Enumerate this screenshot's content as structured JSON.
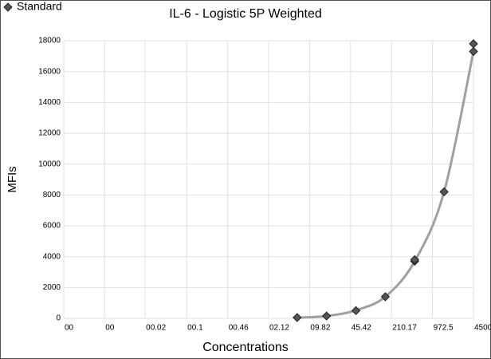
{
  "chart_data": {
    "type": "scatter",
    "title": "IL-6 - Logistic 5P Weighted",
    "x_label": "Concentrations",
    "y_label": "MFIs",
    "xscale": "log",
    "grid": true,
    "legend": "top-left",
    "xlim": [
      0.001,
      4500
    ],
    "ylim": [
      0,
      18000
    ],
    "xticks": [
      {
        "value": 0.001,
        "label": "00"
      },
      {
        "value": 0.0046,
        "label": "00"
      },
      {
        "value": 0.021,
        "label": "00.02"
      },
      {
        "value": 0.099,
        "label": "00.1"
      },
      {
        "value": 0.46,
        "label": "00.46"
      },
      {
        "value": 2.12,
        "label": "02.12"
      },
      {
        "value": 9.82,
        "label": "09.82"
      },
      {
        "value": 45.42,
        "label": "45.42"
      },
      210.17,
      972.5,
      4500
    ],
    "yticks": [
      0,
      2000,
      4000,
      6000,
      8000,
      10000,
      12000,
      14000,
      16000,
      18000
    ],
    "series": [
      {
        "name": "Standard",
        "color": "#555555",
        "x": [
          6.17,
          18.5,
          55.6,
          166.7,
          500,
          500,
          1500,
          4500,
          4500
        ],
        "values": [
          50,
          150,
          500,
          1400,
          3700,
          3800,
          8200,
          17300,
          17800
        ]
      }
    ],
    "fit": {
      "color": "#a0a0a0",
      "x": [
        6.17,
        18.5,
        55.6,
        166.7,
        500,
        1500,
        4500
      ],
      "values": [
        40,
        150,
        520,
        1400,
        3700,
        8200,
        17300
      ]
    }
  }
}
